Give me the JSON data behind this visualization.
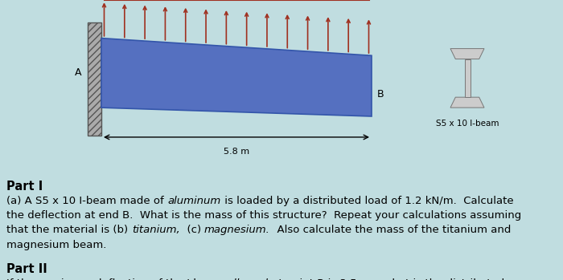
{
  "bg_color": "#c0dde0",
  "beam_color_left": "#5b7fc7",
  "beam_color_right": "#6080c0",
  "arrow_color": "#a03020",
  "wall_hatch_color": "#888888",
  "load_label": "1.2 kN/m",
  "point_A": "A",
  "point_B": "B",
  "length_label": "5.8 m",
  "ibeam_label": "S5 x 10 I-beam",
  "part1_title": "Part I",
  "part2_title": "Part II"
}
